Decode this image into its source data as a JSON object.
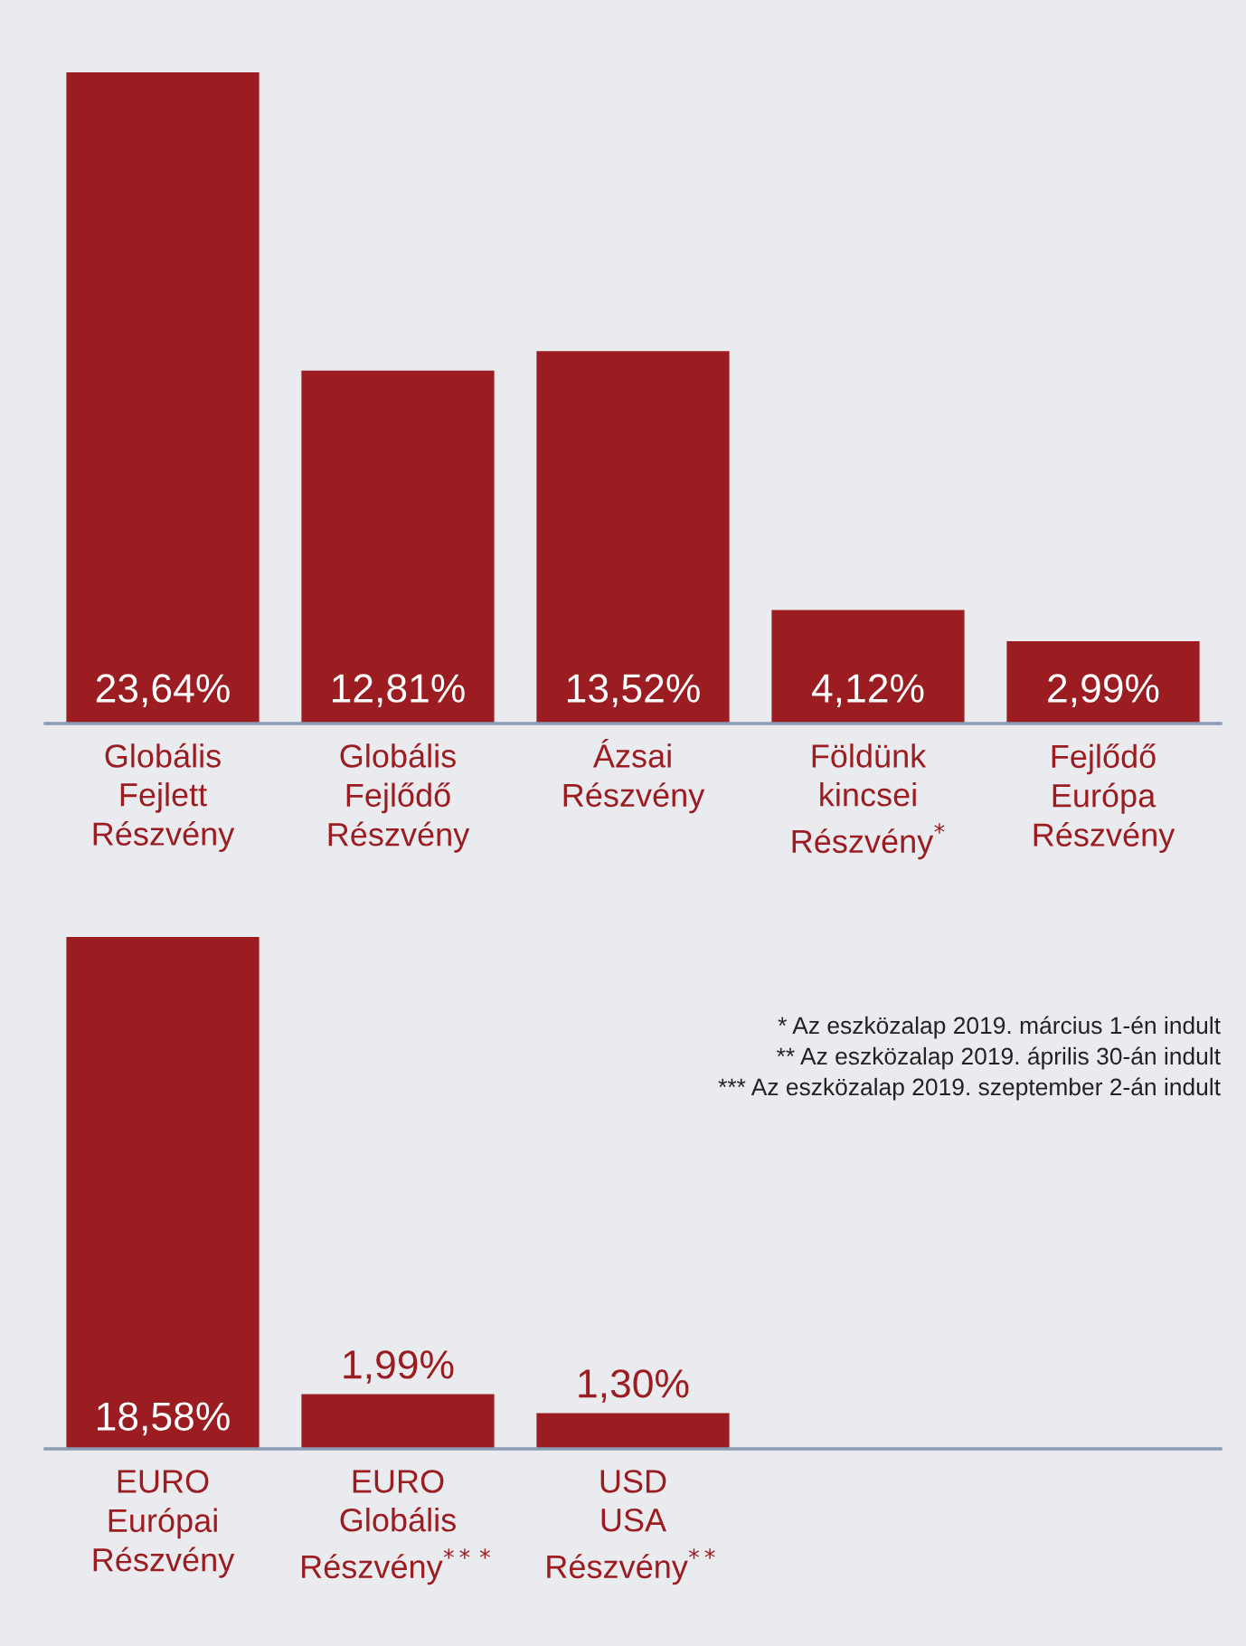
{
  "chart_data": [
    {
      "type": "bar",
      "categories": [
        "Globális\nFejlett\nRészvény",
        "Globális\nFejlődő\nRészvény",
        "Ázsai\nRészvény",
        "Földünk\nkincsei\nRészvény$^{*}$",
        "Fejlődő\nEurópa\nRészvény"
      ],
      "values": [
        23.64,
        12.81,
        13.52,
        4.12,
        2.99
      ],
      "value_labels": [
        "23,64%",
        "12,81%",
        "13,52%",
        "4,12%",
        "2,99%"
      ],
      "color": "#9b1c21",
      "tick_labels": "x",
      "grid": false,
      "legend": false
    },
    {
      "type": "bar",
      "categories": [
        "EURO\nEurópai\nRészvény",
        "EURO\nGlobális\nRészvény$^{***}$",
        "USD\nUSA\nRészvény$^{**}$"
      ],
      "values": [
        18.58,
        1.99,
        1.3
      ],
      "value_labels": [
        "18,58%",
        "1,99%",
        "1,30%"
      ],
      "color": "#9b1c21",
      "tick_labels": "x",
      "grid": false,
      "legend": false,
      "annotations": [
        "* Az eszközalap 2019. március 1-én indult",
        "** Az eszközalap 2019. április 30-án indult",
        "*** Az eszközalap 2019. szeptember 2-án indult"
      ]
    }
  ]
}
